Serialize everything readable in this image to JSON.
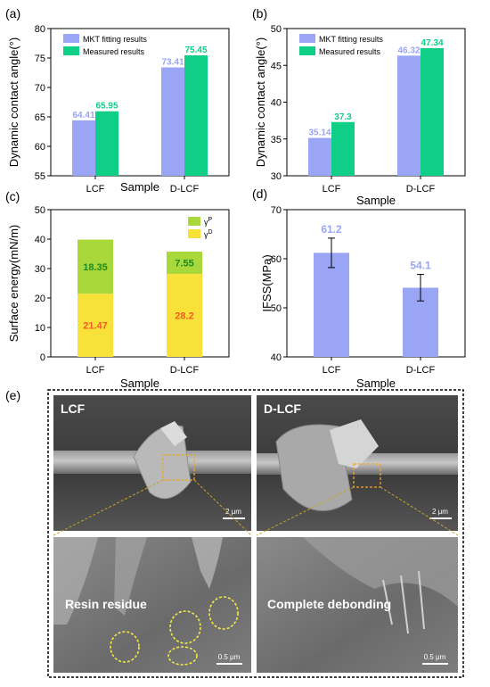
{
  "panel_labels": [
    "(a)",
    "(b)",
    "(c)",
    "(d)",
    "(e)"
  ],
  "chart_data": [
    {
      "type": "bar",
      "panel": "(a)",
      "xlabel": "Sample",
      "ylabel": "Dynamic contact angle(°)",
      "ylim": [
        55,
        80
      ],
      "yticks": [
        "55",
        "60",
        "65",
        "70",
        "75",
        "80"
      ],
      "categories": [
        "LCF",
        "D-LCF"
      ],
      "series": [
        {
          "name": "MKT fitting results",
          "color": "#9aa5f5",
          "values": [
            64.41,
            73.41
          ],
          "labels": [
            "64.41",
            "73.41"
          ]
        },
        {
          "name": "Measured results",
          "color": "#0fcf86",
          "values": [
            65.95,
            75.45
          ],
          "labels": [
            "65.95",
            "75.45"
          ]
        }
      ],
      "legend": "top-left"
    },
    {
      "type": "bar",
      "panel": "(b)",
      "xlabel": "Sample",
      "ylabel": "Dynamic contact angle(°)",
      "ylim": [
        30,
        50
      ],
      "yticks": [
        "30",
        "35",
        "40",
        "45",
        "50"
      ],
      "categories": [
        "LCF",
        "D-LCF"
      ],
      "series": [
        {
          "name": "MKT fitting results",
          "color": "#9aa5f5",
          "values": [
            35.14,
            46.32
          ],
          "labels": [
            "35.14",
            "46.32"
          ]
        },
        {
          "name": "Measured results",
          "color": "#0fcf86",
          "values": [
            37.3,
            47.34
          ],
          "labels": [
            "37.3",
            "47.34"
          ]
        }
      ],
      "legend": "top-left"
    },
    {
      "type": "bar",
      "stacked": true,
      "panel": "(c)",
      "xlabel": "Sample",
      "ylabel": "Surface energy(mN/m)",
      "ylim": [
        0,
        50
      ],
      "yticks": [
        "0",
        "10",
        "20",
        "30",
        "40",
        "50"
      ],
      "categories": [
        "LCF",
        "D-LCF"
      ],
      "series": [
        {
          "name": "γD",
          "color": "#f8e23a",
          "label_color": "#ef5a25",
          "values": [
            21.47,
            28.2
          ],
          "labels": [
            "21.47",
            "28.2"
          ]
        },
        {
          "name": "γP",
          "color": "#a8d83a",
          "label_color": "#1e8a1e",
          "values": [
            18.35,
            7.55
          ],
          "labels": [
            "18.35",
            "7.55"
          ]
        }
      ],
      "legend_text": [
        {
          "base": "γ",
          "sup": "P"
        },
        {
          "base": "γ",
          "sup": "D"
        }
      ],
      "legend": "top-right"
    },
    {
      "type": "bar",
      "panel": "(d)",
      "xlabel": "Sample",
      "ylabel": "IFSS(MPa)",
      "ylim": [
        40,
        70
      ],
      "yticks": [
        "40",
        "50",
        "60",
        "70"
      ],
      "categories": [
        "LCF",
        "D-LCF"
      ],
      "series": [
        {
          "name": "IFSS",
          "color": "#9aa5f5",
          "values": [
            61.2,
            54.1
          ],
          "errors": [
            3.0,
            2.7
          ],
          "labels": [
            "61.2",
            "54.1"
          ]
        }
      ]
    }
  ],
  "micrographs": {
    "panel": "(e)",
    "top_left_label": "LCF",
    "top_right_label": "D-LCF",
    "scale_top": "2 μm",
    "scale_bottom": "0.5 μm",
    "caption_left": "Resin residue",
    "caption_right": "Complete debonding"
  }
}
